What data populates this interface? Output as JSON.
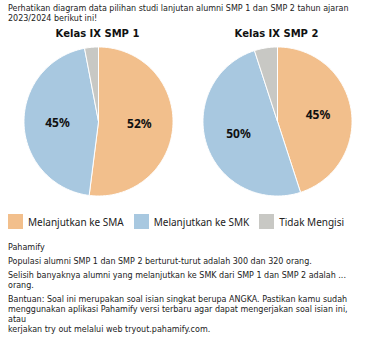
{
  "chart_data": [
    {
      "type": "pie",
      "title": "Kelas IX SMP 1",
      "categories": [
        "Melanjutkan ke SMA",
        "Melanjutkan ke SMK",
        "Tidak Mengisi"
      ],
      "values": [
        52,
        45,
        3
      ],
      "colors": [
        "#F2BF8C",
        "#A8C8E0",
        "#C8C8C4"
      ],
      "data_labels": true,
      "value_labels": [
        "52%",
        "45%",
        null
      ],
      "legend": "bottom"
    },
    {
      "type": "pie",
      "title": "Kelas IX SMP 2",
      "categories": [
        "Melanjutkan ke SMA",
        "Melanjutkan ke SMK",
        "Tidak Mengisi"
      ],
      "values": [
        45,
        50,
        5
      ],
      "colors": [
        "#F2BF8C",
        "#A8C8E0",
        "#C8C8C4"
      ],
      "data_labels": true,
      "value_labels": [
        "45%",
        "50%",
        null
      ],
      "legend": "bottom"
    }
  ],
  "annotations": [
    "Perhatikan diagram data pilihan studi lanjutan alumni SMP 1 dan SMP 2 tahun ajaran\n2023/2024 berikut ini!",
    "Pahamify",
    "Populasi alumni SMP 1 dan SMP 2 berturut-turut adalah 300 dan 320 orang.",
    "Selisih banyaknya alumni yang melanjutkan ke SMK dari SMP 1 dan SMP 2 adalah ... orang.",
    "Bantuan: Soal ini merupakan soal isian singkat berupa ANGKA. Pastikan kamu sudah\nmenggunakan aplikasi Pahamify versi terbaru agar dapat mengerjakan soal isian ini, atau\nkerjakan try out melalui web tryout.pahamify.com."
  ]
}
